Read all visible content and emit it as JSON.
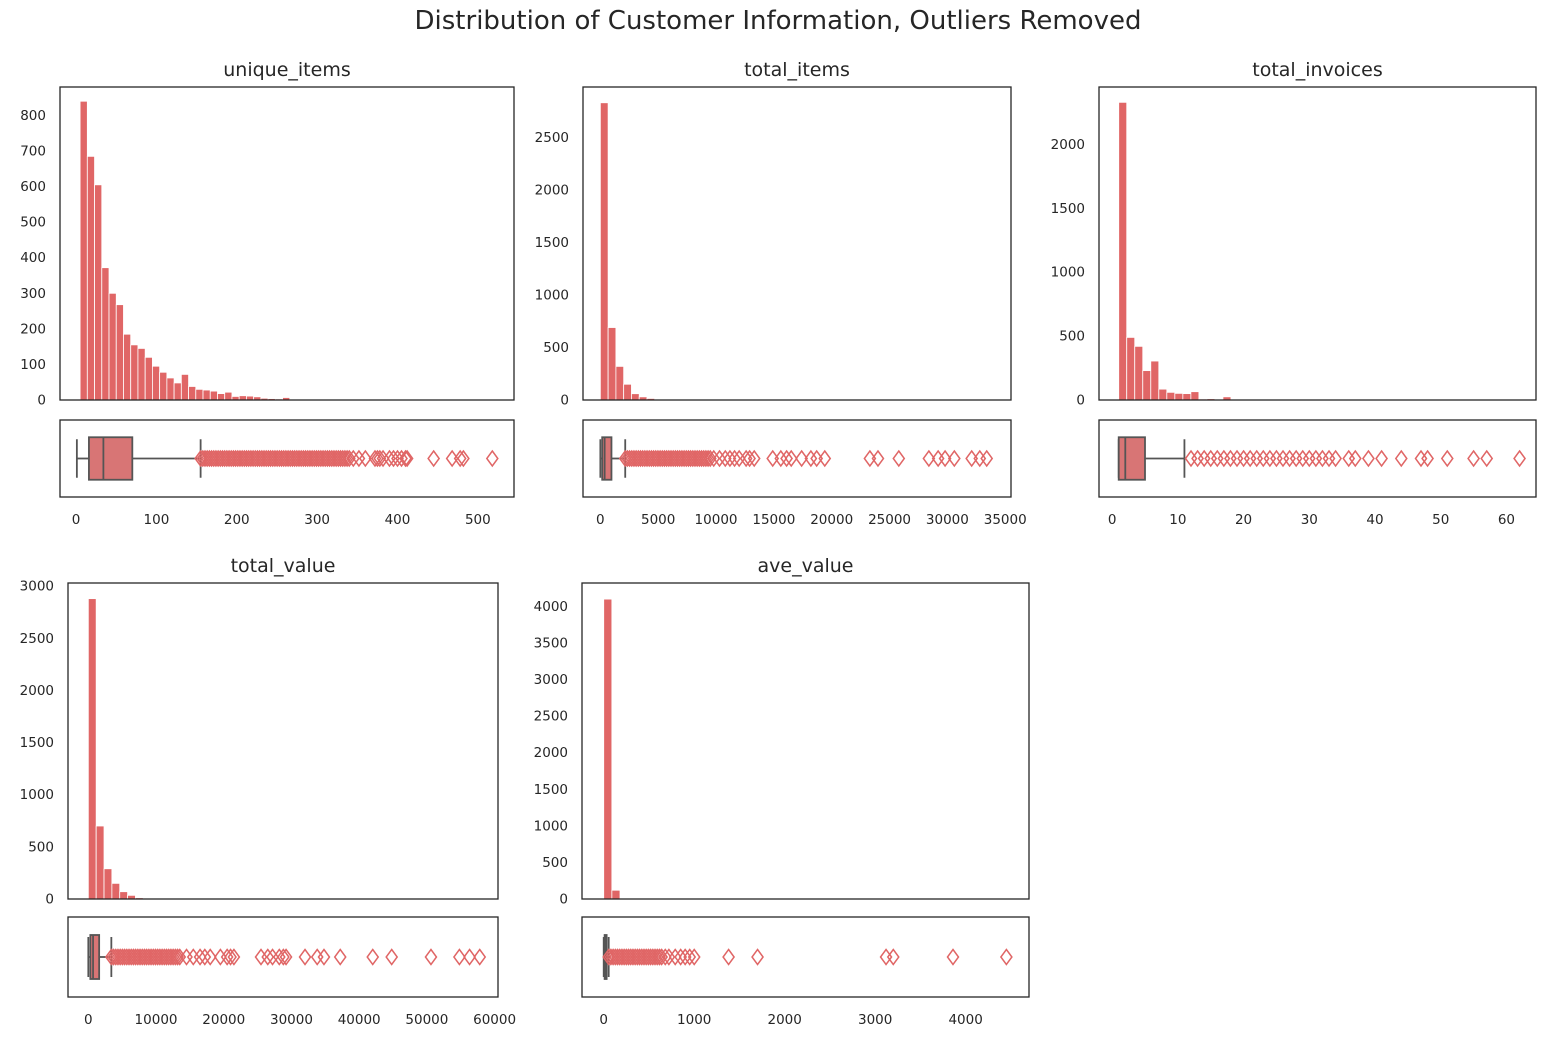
{
  "figure": {
    "title": "Distribution of Customer Information, Outliers Removed",
    "bar_color": "#e06666",
    "box_fill": "#d87575",
    "line_color": "#555555",
    "frame_color": "#262626"
  },
  "chart_data": [
    {
      "type": "histogram+box",
      "title": "unique_items",
      "hist": {
        "bin_start": 5,
        "bin_width": 9,
        "counts": [
          840,
          685,
          605,
          372,
          300,
          268,
          185,
          155,
          145,
          120,
          95,
          78,
          62,
          48,
          72,
          38,
          30,
          28,
          25,
          18,
          22,
          10,
          12,
          11,
          9,
          5,
          4,
          3,
          7,
          2,
          1,
          1,
          1,
          1,
          1,
          0,
          1,
          0,
          1,
          0,
          0,
          0,
          0,
          0,
          0,
          0,
          0,
          0,
          0,
          0
        ],
        "ylim": [
          0,
          880
        ],
        "yticks": [
          0,
          100,
          200,
          300,
          400,
          500,
          600,
          700,
          800
        ]
      },
      "box": {
        "whisker_low": 1,
        "q1": 16,
        "median": 34,
        "q3": 70,
        "whisker_high": 155,
        "outliers_dense_range": [
          155,
          340
        ],
        "outliers": [
          345,
          352,
          360,
          372,
          375,
          378,
          382,
          390,
          395,
          400,
          405,
          410,
          412,
          445,
          468,
          478,
          482,
          518
        ]
      },
      "xlim": [
        -20,
        545
      ],
      "xticks": [
        0,
        100,
        200,
        300,
        400,
        500
      ]
    },
    {
      "type": "histogram+box",
      "title": "total_items",
      "hist": {
        "bin_start": 0,
        "bin_width": 672,
        "counts": [
          2830,
          690,
          320,
          150,
          60,
          30,
          15,
          6,
          4,
          3,
          2,
          2,
          1,
          1,
          1,
          1,
          1,
          0,
          0,
          0,
          0,
          0,
          0,
          0,
          0,
          0,
          0,
          0,
          0,
          0,
          0,
          0,
          0,
          0,
          0,
          0,
          0,
          0,
          0,
          0,
          0,
          0,
          0,
          0,
          0,
          0,
          0,
          0,
          0,
          0
        ],
        "ylim": [
          0,
          2980
        ],
        "yticks": [
          0,
          500,
          1000,
          1500,
          2000,
          2500
        ]
      },
      "box": {
        "whisker_low": 0,
        "q1": 160,
        "median": 370,
        "q3": 960,
        "whisker_high": 2150,
        "outliers_dense_range": [
          2150,
          9500
        ],
        "outliers": [
          9800,
          10300,
          10800,
          11200,
          11600,
          12000,
          12600,
          12900,
          13300,
          14900,
          15600,
          16100,
          16500,
          17400,
          18200,
          18700,
          19400,
          23300,
          24000,
          25800,
          28400,
          29200,
          29800,
          30600,
          32100,
          32800,
          33400
        ]
      },
      "xlim": [
        -1500,
        35500
      ],
      "xticks": [
        0,
        5000,
        10000,
        15000,
        20000,
        25000,
        30000,
        35000
      ]
    },
    {
      "type": "histogram+box",
      "title": "total_invoices",
      "hist": {
        "bin_start": 1,
        "bin_width": 1.22,
        "counts": [
          2330,
          490,
          420,
          230,
          305,
          85,
          60,
          52,
          50,
          65,
          8,
          10,
          5,
          25,
          3,
          2,
          2,
          2,
          1,
          1,
          1,
          1,
          1,
          1,
          1,
          1,
          1,
          0,
          0,
          1,
          0,
          1,
          0,
          0,
          0,
          0,
          0,
          0,
          0,
          0,
          0,
          0,
          0,
          0,
          0,
          0,
          0,
          0,
          0,
          1
        ],
        "ylim": [
          0,
          2450
        ],
        "yticks": [
          0,
          500,
          1000,
          1500,
          2000
        ]
      },
      "box": {
        "whisker_low": 1,
        "q1": 1,
        "median": 2,
        "q3": 5,
        "whisker_high": 11,
        "outliers": [
          12,
          13,
          14,
          15,
          16,
          17,
          18,
          19,
          20,
          21,
          22,
          23,
          24,
          25,
          26,
          27,
          28,
          29,
          30,
          31,
          32,
          33,
          34,
          36,
          37,
          39,
          41,
          44,
          47,
          48,
          51,
          55,
          57,
          62
        ]
      },
      "xlim": [
        -2,
        64.5
      ],
      "xticks": [
        0,
        10,
        20,
        30,
        40,
        50,
        60
      ]
    },
    {
      "type": "histogram+box",
      "title": "total_value",
      "hist": {
        "bin_start": 0,
        "bin_width": 1160,
        "counts": [
          2880,
          700,
          290,
          150,
          70,
          35,
          12,
          6,
          4,
          3,
          2,
          2,
          1,
          1,
          1,
          1,
          1,
          0,
          0,
          0,
          0,
          0,
          0,
          0,
          0,
          0,
          0,
          0,
          0,
          0,
          0,
          0,
          0,
          0,
          0,
          0,
          0,
          0,
          0,
          0,
          0,
          0,
          0,
          0,
          0,
          0,
          0,
          0,
          0,
          0
        ],
        "ylim": [
          0,
          3030
        ],
        "yticks": [
          0,
          500,
          1000,
          1500,
          2000,
          2500,
          3000
        ]
      },
      "box": {
        "whisker_low": 0,
        "q1": 300,
        "median": 700,
        "q3": 1600,
        "whisker_high": 3400,
        "outliers_dense_range": [
          3400,
          13500
        ],
        "outliers": [
          14500,
          15500,
          16500,
          17200,
          18000,
          19500,
          20500,
          21000,
          21500,
          25500,
          26500,
          27200,
          28200,
          28800,
          29200,
          32000,
          33800,
          34800,
          37200,
          42000,
          44800,
          50600,
          54800,
          56300,
          57800
        ]
      },
      "xlim": [
        -3000,
        60500
      ],
      "xticks": [
        0,
        10000,
        20000,
        30000,
        40000,
        50000,
        60000
      ]
    },
    {
      "type": "histogram+box",
      "title": "ave_value",
      "hist": {
        "bin_start": 0,
        "bin_width": 90,
        "counts": [
          4100,
          120,
          5,
          3,
          2,
          1,
          1,
          1,
          1,
          1,
          1,
          0,
          0,
          0,
          0,
          0,
          0,
          0,
          0,
          1,
          0,
          0,
          0,
          0,
          0,
          0,
          0,
          0,
          0,
          0,
          0,
          0,
          0,
          0,
          1,
          1,
          0,
          0,
          0,
          0,
          0,
          0,
          1,
          0,
          0,
          0,
          0,
          0,
          0,
          1
        ],
        "ylim": [
          0,
          4320
        ],
        "yticks": [
          0,
          500,
          1000,
          1500,
          2000,
          2500,
          3000,
          3500,
          4000
        ]
      },
      "box": {
        "whisker_low": 0,
        "q1": 10,
        "median": 18,
        "q3": 28,
        "whisker_high": 55,
        "outliers_dense_range": [
          55,
          640
        ],
        "outliers": [
          680,
          720,
          790,
          850,
          900,
          950,
          1000,
          1380,
          1700,
          3120,
          3200,
          3860,
          4450
        ]
      },
      "xlim": [
        -240,
        4700
      ],
      "xticks": [
        0,
        1000,
        2000,
        3000,
        4000
      ]
    }
  ]
}
